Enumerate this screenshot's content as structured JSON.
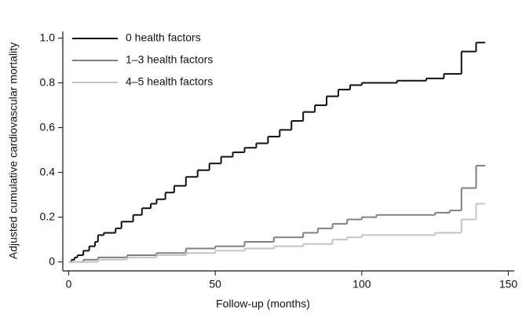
{
  "chart_data": {
    "type": "line",
    "step": "post",
    "x_label": "Follow-up (months)",
    "y_label": "Adjusted cumulative cardiovascular mortality",
    "xlim": [
      -2,
      152
    ],
    "ylim": [
      -0.04,
      1.03
    ],
    "xticks": [
      0,
      50,
      100,
      150
    ],
    "yticks": [
      0,
      0.2,
      0.4,
      0.6,
      0.8,
      {
        "value": 1,
        "label": "1.0"
      }
    ],
    "legend": "upper-left",
    "series": [
      {
        "name": "0 health factors",
        "color": "#111111",
        "x": [
          0,
          1,
          2,
          3,
          5,
          7,
          9,
          10,
          12,
          16,
          18,
          22,
          25,
          28,
          30,
          33,
          36,
          40,
          44,
          48,
          52,
          56,
          60,
          64,
          68,
          72,
          76,
          80,
          84,
          88,
          92,
          96,
          100,
          112,
          122,
          128,
          134,
          139,
          142
        ],
        "values": [
          0,
          0.01,
          0.02,
          0.03,
          0.05,
          0.07,
          0.09,
          0.12,
          0.13,
          0.15,
          0.18,
          0.21,
          0.24,
          0.26,
          0.28,
          0.31,
          0.34,
          0.38,
          0.41,
          0.44,
          0.47,
          0.49,
          0.51,
          0.53,
          0.56,
          0.59,
          0.63,
          0.67,
          0.7,
          0.74,
          0.77,
          0.79,
          0.8,
          0.81,
          0.82,
          0.84,
          0.94,
          0.98,
          0.98
        ]
      },
      {
        "name": "1–3 health factors",
        "color": "#808080",
        "x": [
          0,
          5,
          10,
          20,
          30,
          40,
          50,
          60,
          70,
          80,
          85,
          90,
          95,
          100,
          105,
          125,
          130,
          134,
          139,
          142
        ],
        "values": [
          0,
          0.01,
          0.02,
          0.03,
          0.04,
          0.06,
          0.07,
          0.09,
          0.11,
          0.13,
          0.15,
          0.17,
          0.19,
          0.2,
          0.21,
          0.22,
          0.23,
          0.33,
          0.43,
          0.43
        ]
      },
      {
        "name": "4–5 health factors",
        "color": "#c4c4c4",
        "x": [
          0,
          10,
          20,
          30,
          40,
          50,
          60,
          70,
          80,
          90,
          95,
          100,
          125,
          134,
          139,
          142
        ],
        "values": [
          0,
          0.01,
          0.02,
          0.03,
          0.04,
          0.05,
          0.06,
          0.07,
          0.08,
          0.1,
          0.11,
          0.12,
          0.13,
          0.19,
          0.26,
          0.26
        ]
      }
    ]
  }
}
